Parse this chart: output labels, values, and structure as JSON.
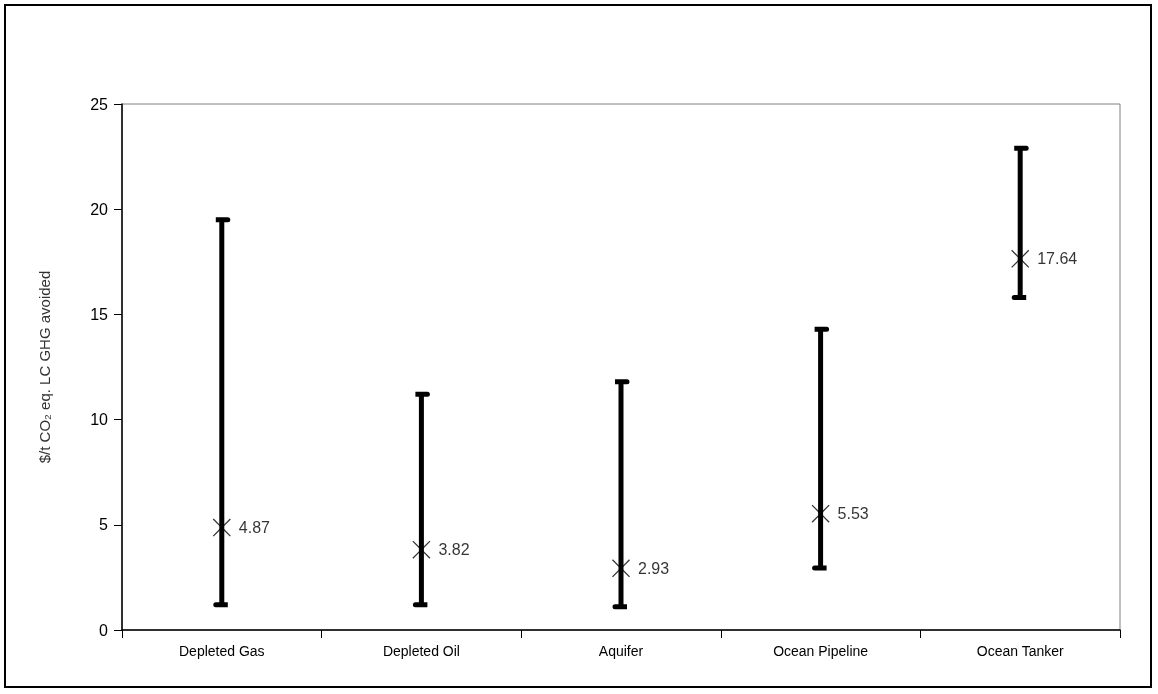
{
  "chart_data": {
    "type": "scatter",
    "ylabel": "$/t CO₂ eq. LC GHG avoided",
    "categories": [
      "Depleted Gas",
      "Depleted Oil",
      "Aquifer",
      "Ocean Pipeline",
      "Ocean Tanker"
    ],
    "values": [
      4.87,
      3.82,
      2.93,
      5.53,
      17.64
    ],
    "errors": [
      [
        1.2,
        19.5
      ],
      [
        1.2,
        11.2
      ],
      [
        1.1,
        11.8
      ],
      [
        2.95,
        14.3
      ],
      [
        15.8,
        22.9
      ]
    ],
    "color": "#000000",
    "marker": "cross",
    "data_labels": true,
    "grid": false,
    "ylim": [
      0,
      25
    ],
    "yticks": [
      0,
      5,
      10,
      15,
      20,
      25
    ]
  }
}
